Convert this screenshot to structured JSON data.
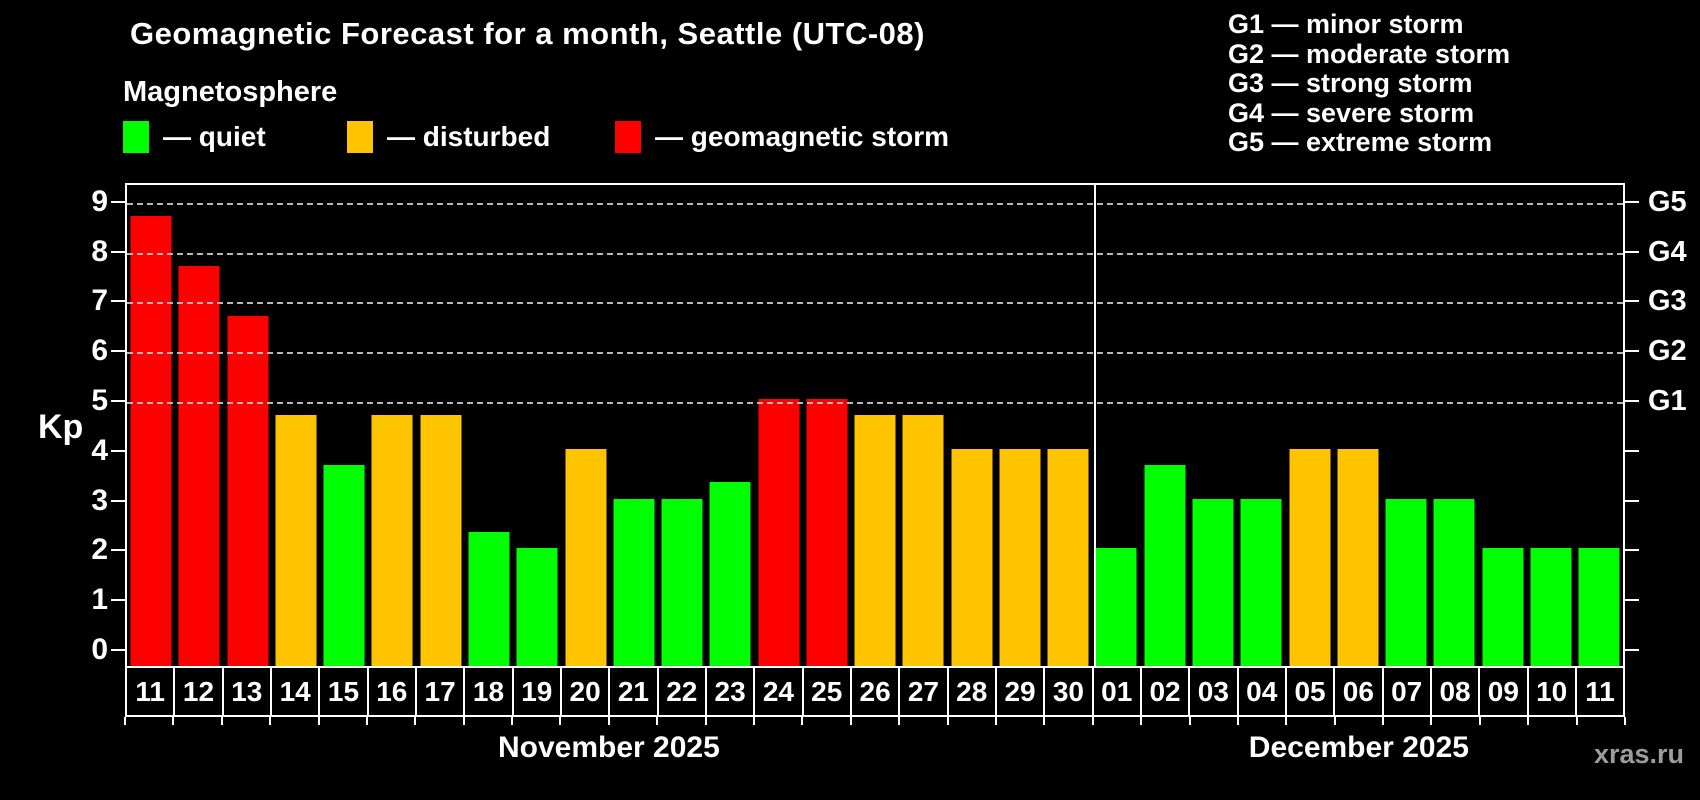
{
  "title": "Geomagnetic Forecast for a month, Seattle (UTC-08)",
  "watermark": "xras.ru",
  "magnetosphere_legend": {
    "title": "Magnetosphere",
    "items": [
      {
        "key": "quiet",
        "label": "— quiet",
        "color": "#00ff00"
      },
      {
        "key": "disturbed",
        "label": "— disturbed",
        "color": "#ffc400"
      },
      {
        "key": "storm",
        "label": "— geomagnetic storm",
        "color": "#ff0000"
      }
    ]
  },
  "g_scale_legend": {
    "items": [
      "G1 — minor storm",
      "G2 — moderate storm",
      "G3 — strong storm",
      "G4 — severe storm",
      "G5 — extreme storm"
    ]
  },
  "chart_data": {
    "type": "bar",
    "ylabel": "Kp",
    "ylim": [
      0,
      9
    ],
    "yticks": [
      0,
      1,
      2,
      3,
      4,
      5,
      6,
      7,
      8,
      9
    ],
    "gridlines_at": [
      5,
      6,
      7,
      8,
      9
    ],
    "grid_style": "dashed",
    "right_axis": [
      {
        "label": "G1",
        "kp": 5
      },
      {
        "label": "G2",
        "kp": 6
      },
      {
        "label": "G3",
        "kp": 7
      },
      {
        "label": "G4",
        "kp": 8
      },
      {
        "label": "G5",
        "kp": 9
      }
    ],
    "colors": {
      "quiet": "#00ff00",
      "disturbed": "#ffc400",
      "storm": "#ff0000"
    },
    "months": [
      {
        "label": "November 2025",
        "days": [
          {
            "day": "11",
            "kp": 8.67,
            "state": "storm"
          },
          {
            "day": "12",
            "kp": 7.67,
            "state": "storm"
          },
          {
            "day": "13",
            "kp": 6.67,
            "state": "storm"
          },
          {
            "day": "14",
            "kp": 4.67,
            "state": "disturbed"
          },
          {
            "day": "15",
            "kp": 3.67,
            "state": "quiet"
          },
          {
            "day": "16",
            "kp": 4.67,
            "state": "disturbed"
          },
          {
            "day": "17",
            "kp": 4.67,
            "state": "disturbed"
          },
          {
            "day": "18",
            "kp": 2.33,
            "state": "quiet"
          },
          {
            "day": "19",
            "kp": 2.0,
            "state": "quiet"
          },
          {
            "day": "20",
            "kp": 4.0,
            "state": "disturbed"
          },
          {
            "day": "21",
            "kp": 3.0,
            "state": "quiet"
          },
          {
            "day": "22",
            "kp": 3.0,
            "state": "quiet"
          },
          {
            "day": "23",
            "kp": 3.33,
            "state": "quiet"
          },
          {
            "day": "24",
            "kp": 5.0,
            "state": "storm"
          },
          {
            "day": "25",
            "kp": 5.0,
            "state": "storm"
          },
          {
            "day": "26",
            "kp": 4.67,
            "state": "disturbed"
          },
          {
            "day": "27",
            "kp": 4.67,
            "state": "disturbed"
          },
          {
            "day": "28",
            "kp": 4.0,
            "state": "disturbed"
          },
          {
            "day": "29",
            "kp": 4.0,
            "state": "disturbed"
          },
          {
            "day": "30",
            "kp": 4.0,
            "state": "disturbed"
          }
        ]
      },
      {
        "label": "December 2025",
        "days": [
          {
            "day": "01",
            "kp": 2.0,
            "state": "quiet"
          },
          {
            "day": "02",
            "kp": 3.67,
            "state": "quiet"
          },
          {
            "day": "03",
            "kp": 3.0,
            "state": "quiet"
          },
          {
            "day": "04",
            "kp": 3.0,
            "state": "quiet"
          },
          {
            "day": "05",
            "kp": 4.0,
            "state": "disturbed"
          },
          {
            "day": "06",
            "kp": 4.0,
            "state": "disturbed"
          },
          {
            "day": "07",
            "kp": 3.0,
            "state": "quiet"
          },
          {
            "day": "08",
            "kp": 3.0,
            "state": "quiet"
          },
          {
            "day": "09",
            "kp": 2.0,
            "state": "quiet"
          },
          {
            "day": "10",
            "kp": 2.0,
            "state": "quiet"
          },
          {
            "day": "11",
            "kp": 2.0,
            "state": "quiet"
          }
        ]
      }
    ]
  }
}
